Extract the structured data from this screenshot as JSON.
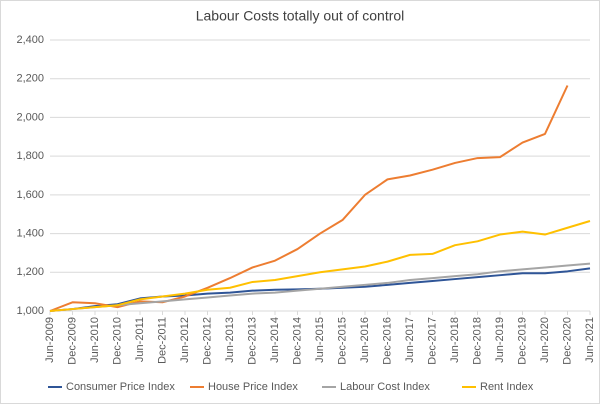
{
  "chart_data": {
    "type": "line",
    "title": "Labour Costs totally out of control",
    "categories": [
      "Jun-2009",
      "Dec-2009",
      "Jun-2010",
      "Dec-2010",
      "Jun-2011",
      "Dec-2011",
      "Jun-2012",
      "Dec-2012",
      "Jun-2013",
      "Dec-2013",
      "Jun-2014",
      "Dec-2014",
      "Jun-2015",
      "Dec-2015",
      "Jun-2016",
      "Dec-2016",
      "Jun-2017",
      "Dec-2017",
      "Jun-2018",
      "Dec-2018",
      "Jun-2019",
      "Dec-2019",
      "Jun-2020",
      "Dec-2020",
      "Jun-2021"
    ],
    "series": [
      {
        "name": "Consumer Price Index",
        "color": "#2f5597",
        "values": [
          1000,
          1010,
          1025,
          1035,
          1065,
          1075,
          1080,
          1090,
          1095,
          1105,
          1110,
          1112,
          1115,
          1120,
          1125,
          1135,
          1145,
          1155,
          1165,
          1175,
          1185,
          1195,
          1195,
          1205,
          1220
        ]
      },
      {
        "name": "House Price Index",
        "color": "#ed7d31",
        "values": [
          1000,
          1045,
          1040,
          1020,
          1050,
          1045,
          1075,
          1120,
          1170,
          1225,
          1260,
          1320,
          1400,
          1470,
          1600,
          1680,
          1700,
          1730,
          1765,
          1790,
          1795,
          1870,
          1915,
          2165,
          null
        ]
      },
      {
        "name": "Labour Cost Index",
        "color": "#a5a5a5",
        "values": [
          1000,
          1010,
          1020,
          1030,
          1040,
          1050,
          1060,
          1070,
          1080,
          1090,
          1095,
          1105,
          1115,
          1125,
          1135,
          1145,
          1160,
          1170,
          1180,
          1190,
          1205,
          1215,
          1225,
          1235,
          1245
        ]
      },
      {
        "name": "Rent Index",
        "color": "#ffc000",
        "values": [
          1000,
          1010,
          1020,
          1030,
          1060,
          1075,
          1090,
          1110,
          1120,
          1150,
          1160,
          1180,
          1200,
          1215,
          1230,
          1255,
          1290,
          1295,
          1340,
          1360,
          1395,
          1410,
          1395,
          1430,
          1465
        ]
      }
    ],
    "ylim": [
      1000,
      2400
    ],
    "yticks": [
      {
        "value": 1000,
        "label": "1,000"
      },
      {
        "value": 1200,
        "label": "1,200"
      },
      {
        "value": 1400,
        "label": "1,400"
      },
      {
        "value": 1600,
        "label": "1,600"
      },
      {
        "value": 1800,
        "label": "1,800"
      },
      {
        "value": 2000,
        "label": "2,000"
      },
      {
        "value": 2200,
        "label": "2,200"
      },
      {
        "value": 2400,
        "label": "2,400"
      }
    ],
    "grid": true,
    "legend": "bottom"
  }
}
